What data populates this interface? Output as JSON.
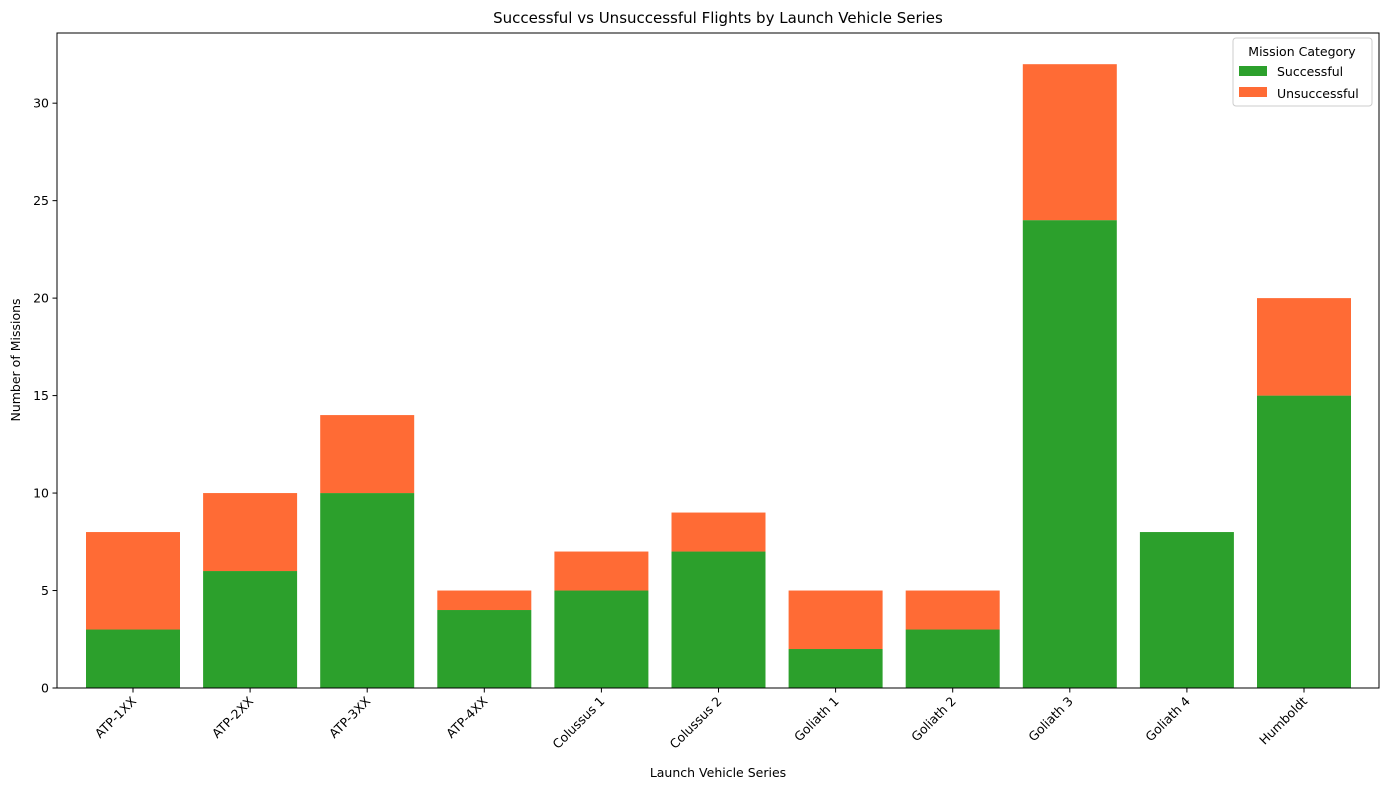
{
  "chart_data": {
    "type": "bar",
    "stacked": true,
    "title": "Successful vs Unsuccessful Flights by Launch Vehicle Series",
    "xlabel": "Launch Vehicle Series",
    "ylabel": "Number of Missions",
    "ylim": [
      0,
      33.6
    ],
    "yticks": [
      0,
      5,
      10,
      15,
      20,
      25,
      30
    ],
    "grid": false,
    "categories": [
      "ATP-1XX",
      "ATP-2XX",
      "ATP-3XX",
      "ATP-4XX",
      "Colussus 1",
      "Colussus 2",
      "Goliath 1",
      "Goliath 2",
      "Goliath 3",
      "Goliath 4",
      "Humboldt"
    ],
    "series": [
      {
        "name": "Successful",
        "color": "#2ca02c",
        "values": [
          3,
          6,
          10,
          4,
          5,
          7,
          2,
          3,
          24,
          8,
          15
        ]
      },
      {
        "name": "Unsuccessful",
        "color": "#ff6b35",
        "values": [
          5,
          4,
          4,
          1,
          2,
          2,
          3,
          2,
          8,
          0,
          5
        ]
      }
    ],
    "legend": {
      "title": "Mission Category",
      "position": "top-right"
    }
  }
}
